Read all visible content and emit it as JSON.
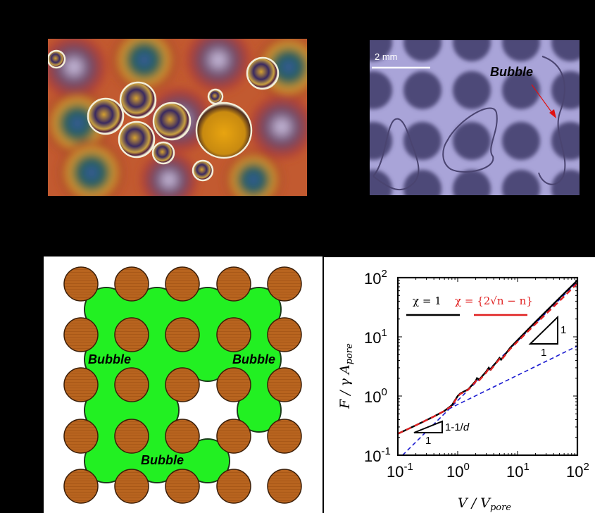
{
  "panels": {
    "a": {
      "description_icon": "photo-oil-bubbles"
    },
    "b": {
      "scale_bar_label": "2 mm",
      "bubble_label": "Bubble",
      "arrow_color": "#e01010"
    },
    "c": {
      "bubble_labels": [
        "Bubble",
        "Bubble",
        "Bubble"
      ],
      "grain_color": "#b5621e",
      "bubble_color": "#22f022"
    }
  },
  "chart_data": {
    "type": "line",
    "xscale": "log",
    "yscale": "log",
    "xlim": [
      0.1,
      100
    ],
    "ylim": [
      0.1,
      100
    ],
    "tick_base": "10",
    "tick_exponents": [
      "-1",
      "0",
      "1",
      "2"
    ],
    "xlabel": "V / V",
    "xlabel_sub": "pore",
    "ylabel": "F / γ A",
    "ylabel_sub": "pore",
    "legend": [
      {
        "label": "χ = 1",
        "color": "#000000"
      },
      {
        "label": "χ = {2√n − n}",
        "color": "#e02020"
      }
    ],
    "series": [
      {
        "name": "χ = 1",
        "color": "#000000",
        "style": "solid",
        "points": [
          [
            0.1,
            0.23
          ],
          [
            0.2,
            0.32
          ],
          [
            0.4,
            0.45
          ],
          [
            0.6,
            0.56
          ],
          [
            0.8,
            0.7
          ],
          [
            1.0,
            1.0
          ],
          [
            1.1,
            1.1
          ],
          [
            1.5,
            1.3
          ],
          [
            2.0,
            1.8
          ],
          [
            2.1,
            2.0
          ],
          [
            2.3,
            1.9
          ],
          [
            3,
            2.6
          ],
          [
            3.3,
            3.0
          ],
          [
            3.5,
            2.8
          ],
          [
            4.5,
            3.8
          ],
          [
            5,
            4.4
          ],
          [
            5.3,
            4.1
          ],
          [
            7,
            5.9
          ],
          [
            7.5,
            6.5
          ],
          [
            10,
            8.8
          ],
          [
            20,
            18
          ],
          [
            50,
            45
          ],
          [
            100,
            90
          ]
        ]
      },
      {
        "name": "χ = {2√n − n}",
        "color": "#e02020",
        "style": "dashed",
        "points": [
          [
            0.1,
            0.23
          ],
          [
            0.2,
            0.32
          ],
          [
            0.4,
            0.45
          ],
          [
            0.6,
            0.56
          ],
          [
            0.8,
            0.68
          ],
          [
            1.0,
            0.98
          ],
          [
            1.1,
            1.08
          ],
          [
            1.5,
            1.28
          ],
          [
            2.0,
            1.75
          ],
          [
            2.1,
            1.95
          ],
          [
            2.3,
            1.85
          ],
          [
            3,
            2.5
          ],
          [
            3.3,
            2.9
          ],
          [
            3.5,
            2.7
          ],
          [
            4.5,
            3.7
          ],
          [
            5,
            4.2
          ],
          [
            5.3,
            4.0
          ],
          [
            7,
            5.7
          ],
          [
            7.5,
            6.2
          ],
          [
            10,
            8.3
          ],
          [
            20,
            16.5
          ],
          [
            50,
            40
          ],
          [
            100,
            80
          ]
        ]
      },
      {
        "name": "asymptote slope 1-1/d",
        "color": "#1a1ad0",
        "style": "dashed",
        "points": [
          [
            0.1,
            0.23
          ],
          [
            100,
            7
          ]
        ]
      },
      {
        "name": "asymptote slope 1",
        "color": "#1a1ad0",
        "style": "dashed",
        "points": [
          [
            0.12,
            0.1
          ],
          [
            100,
            85
          ]
        ]
      }
    ],
    "annotations": {
      "slope1_rise": "1",
      "slope1_run": "1",
      "slope2_rise": "1-1/",
      "slope2_rise_var": "d",
      "slope2_run": "1"
    }
  }
}
